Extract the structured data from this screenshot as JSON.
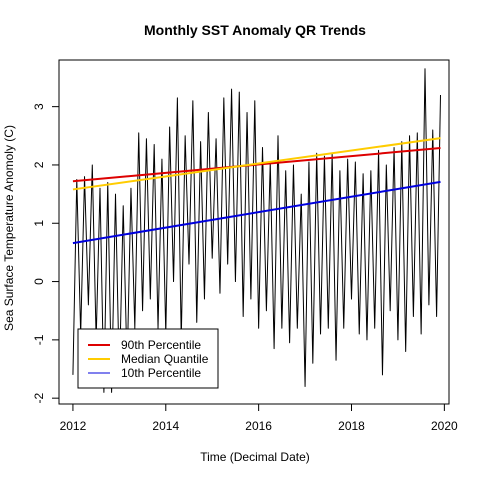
{
  "chart_data": {
    "type": "line",
    "title": "Monthly SST Anomaly QR Trends",
    "xlabel": "Time (Decimal Date)",
    "ylabel": "Sea Surface Temperature Anomoly (C)",
    "xlim": [
      2011.7,
      2020.1
    ],
    "ylim": [
      -2.1,
      3.8
    ],
    "x_ticks": [
      2012,
      2014,
      2016,
      2018,
      2020
    ],
    "y_ticks": [
      -2,
      -1,
      0,
      1,
      2,
      3
    ],
    "grid": false,
    "legend_position": "bottom-left",
    "series": [
      {
        "name": "Monthly SST Anomaly",
        "color": "#000000",
        "x": [
          2012.0,
          2012.083,
          2012.167,
          2012.25,
          2012.333,
          2012.417,
          2012.5,
          2012.583,
          2012.667,
          2012.75,
          2012.833,
          2012.917,
          2013.0,
          2013.083,
          2013.167,
          2013.25,
          2013.333,
          2013.417,
          2013.5,
          2013.583,
          2013.667,
          2013.75,
          2013.833,
          2013.917,
          2014.0,
          2014.083,
          2014.167,
          2014.25,
          2014.333,
          2014.417,
          2014.5,
          2014.583,
          2014.667,
          2014.75,
          2014.833,
          2014.917,
          2015.0,
          2015.083,
          2015.167,
          2015.25,
          2015.333,
          2015.417,
          2015.5,
          2015.583,
          2015.667,
          2015.75,
          2015.833,
          2015.917,
          2016.0,
          2016.083,
          2016.167,
          2016.25,
          2016.333,
          2016.417,
          2016.5,
          2016.583,
          2016.667,
          2016.75,
          2016.833,
          2016.917,
          2017.0,
          2017.083,
          2017.167,
          2017.25,
          2017.333,
          2017.417,
          2017.5,
          2017.583,
          2017.667,
          2017.75,
          2017.833,
          2017.917,
          2018.0,
          2018.083,
          2018.167,
          2018.25,
          2018.333,
          2018.417,
          2018.5,
          2018.583,
          2018.667,
          2018.75,
          2018.833,
          2018.917,
          2019.0,
          2019.083,
          2019.167,
          2019.25,
          2019.333,
          2019.417,
          2019.5,
          2019.583,
          2019.667,
          2019.75,
          2019.833,
          2019.917
        ],
        "y": [
          -1.6,
          1.75,
          -0.9,
          1.8,
          -0.4,
          2.0,
          -1.0,
          1.6,
          -1.9,
          1.7,
          -1.9,
          1.5,
          -1.7,
          1.3,
          -1.5,
          1.6,
          -0.8,
          2.55,
          -0.5,
          2.45,
          -0.3,
          2.35,
          -0.8,
          2.1,
          -0.9,
          2.65,
          0.0,
          3.15,
          -1.0,
          2.5,
          0.3,
          3.1,
          -0.7,
          2.4,
          -0.3,
          2.9,
          0.4,
          2.45,
          -0.2,
          3.15,
          0.3,
          3.3,
          0.0,
          3.25,
          -0.6,
          2.9,
          -0.3,
          3.1,
          -0.8,
          2.3,
          -0.5,
          2.05,
          -1.15,
          2.5,
          -0.8,
          1.9,
          -1.05,
          2.0,
          -0.8,
          1.5,
          -1.8,
          2.05,
          -1.4,
          2.2,
          -0.9,
          2.15,
          -0.8,
          2.2,
          -1.35,
          1.9,
          -0.8,
          2.1,
          -0.3,
          2.05,
          -0.9,
          1.85,
          -1.0,
          1.9,
          -0.8,
          2.25,
          -1.6,
          2.0,
          -0.5,
          2.3,
          -1.0,
          2.4,
          -1.2,
          2.5,
          -0.6,
          2.55,
          -0.9,
          3.65,
          -0.4,
          2.6,
          -0.6,
          3.2
        ]
      },
      {
        "name": "90th Percentile",
        "color": "#dd0000",
        "x": [
          2012.0,
          2019.917
        ],
        "y": [
          1.72,
          2.29
        ]
      },
      {
        "name": "Median Quantile",
        "color": "#ffcc00",
        "x": [
          2012.0,
          2019.917
        ],
        "y": [
          1.58,
          2.46
        ]
      },
      {
        "name": "10th Percentile",
        "color": "#0000dd",
        "x": [
          2012.0,
          2019.917
        ],
        "y": [
          0.66,
          1.71
        ]
      }
    ]
  }
}
